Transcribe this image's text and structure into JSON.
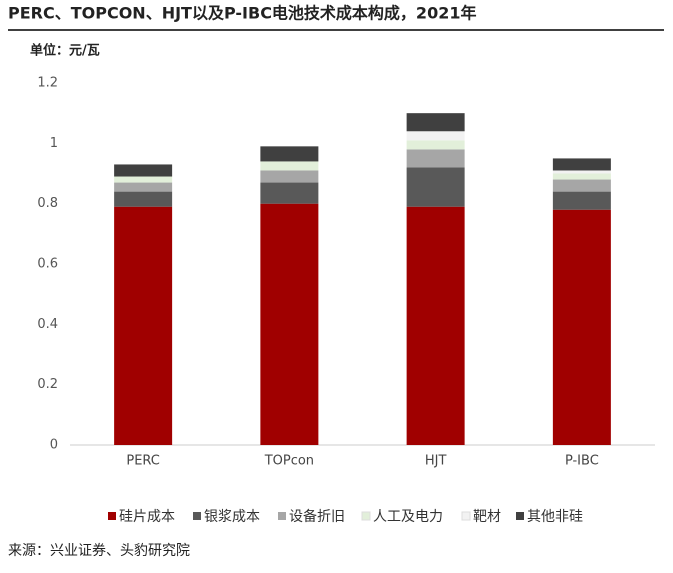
{
  "chart_data": {
    "type": "stacked-bar",
    "title": "PERC、TOPCON、HJT以及P-IBC电池技术成本构成，2021年",
    "y_label": "单位：元/瓦",
    "source": "来源：兴业证券、头豹研究院",
    "categories": [
      "PERC",
      "TOPcon",
      "HJT",
      "P-IBC"
    ],
    "series": [
      {
        "name": "硅片成本",
        "color": "#a00000",
        "values": [
          0.79,
          0.8,
          0.79,
          0.78
        ]
      },
      {
        "name": "银浆成本",
        "color": "#595959",
        "values": [
          0.05,
          0.07,
          0.13,
          0.06
        ]
      },
      {
        "name": "设备折旧",
        "color": "#a6a6a6",
        "values": [
          0.03,
          0.04,
          0.06,
          0.04
        ]
      },
      {
        "name": "人工及电力",
        "color": "#e2efda",
        "values": [
          0.02,
          0.03,
          0.03,
          0.02
        ]
      },
      {
        "name": "靶材",
        "color": "#f2f2f2",
        "values": [
          0,
          0,
          0.03,
          0.01
        ]
      },
      {
        "name": "其他非硅",
        "color": "#404040",
        "values": [
          0.04,
          0.05,
          0.06,
          0.04
        ]
      }
    ],
    "ylim": [
      0,
      1.2
    ],
    "yticks": [
      0,
      0.2,
      0.4,
      0.6,
      0.8,
      1,
      1.2
    ]
  }
}
